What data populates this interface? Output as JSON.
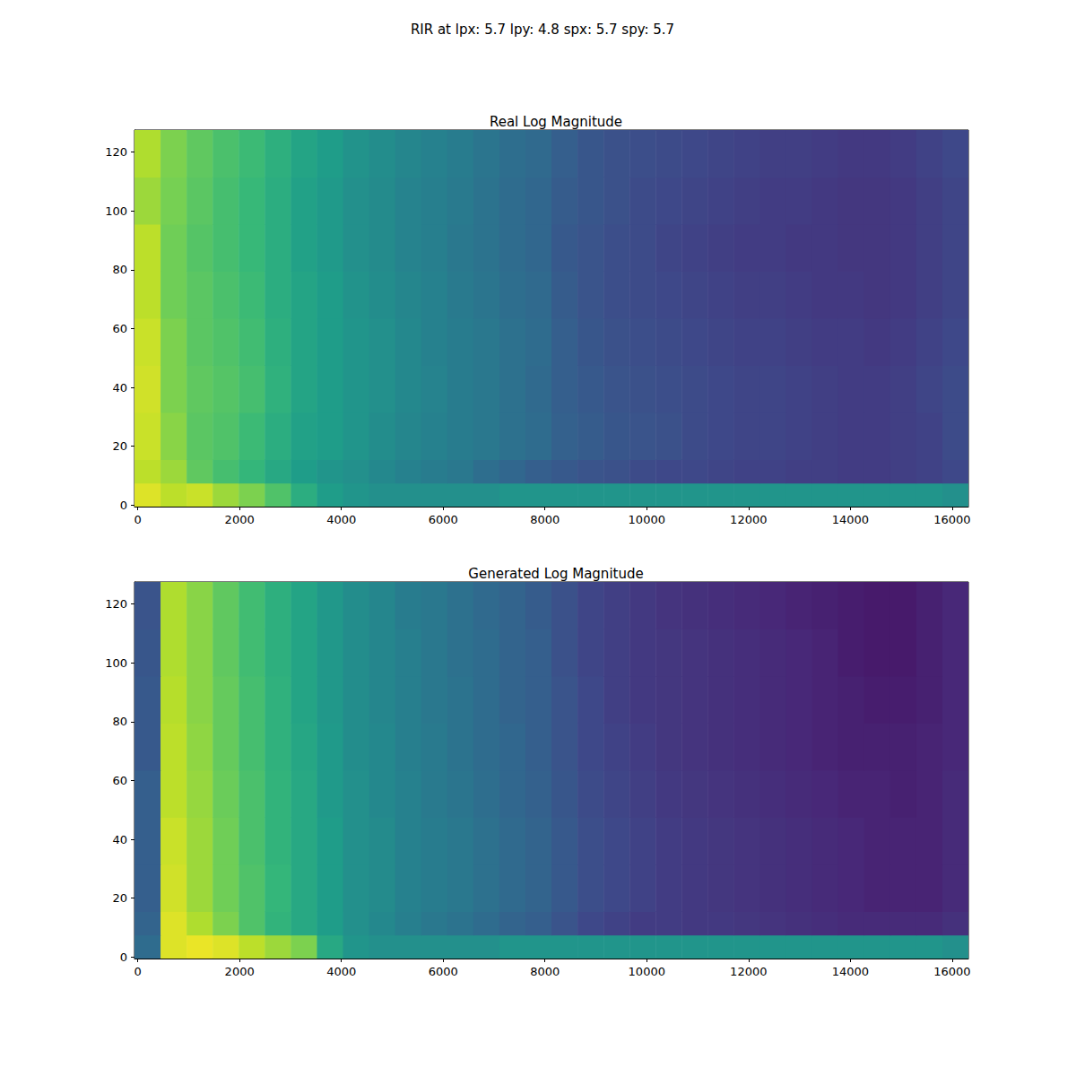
{
  "title": "RIR at lpx: 5.7 lpy: 4.8 spx: 5.7 spy: 5.7",
  "chart_data": [
    {
      "type": "heatmap",
      "title": "Real Log Magnitude",
      "xlim": [
        -64,
        16320
      ],
      "xticks": [
        0,
        2000,
        4000,
        6000,
        8000,
        10000,
        12000,
        14000,
        16000
      ],
      "ylim": [
        -0.5,
        127.5
      ],
      "yticks": [
        0,
        20,
        40,
        60,
        80,
        100,
        120
      ],
      "zlim": [
        0,
        1
      ],
      "x_edges": [
        -64,
        448,
        960,
        1472,
        1984,
        2496,
        3008,
        3520,
        4032,
        4544,
        5056,
        5568,
        6080,
        6592,
        7104,
        7616,
        8128,
        8640,
        9152,
        9664,
        10176,
        10688,
        11200,
        11712,
        12224,
        12736,
        13248,
        13760,
        14272,
        14784,
        15296,
        15808,
        16320
      ],
      "y_edges": [
        -0.5,
        7.5,
        15.5,
        31.5,
        47.5,
        63.5,
        79.5,
        95.5,
        111.5,
        127.5
      ],
      "values": [
        [
          0.95,
          0.9,
          0.92,
          0.85,
          0.8,
          0.72,
          0.62,
          0.55,
          0.52,
          0.5,
          0.5,
          0.5,
          0.5,
          0.5,
          0.52,
          0.52,
          0.52,
          0.52,
          0.52,
          0.52,
          0.52,
          0.52,
          0.52,
          0.52,
          0.52,
          0.52,
          0.52,
          0.52,
          0.52,
          0.52,
          0.52,
          0.5
        ],
        [
          0.9,
          0.85,
          0.75,
          0.7,
          0.66,
          0.6,
          0.55,
          0.52,
          0.5,
          0.47,
          0.44,
          0.42,
          0.4,
          0.36,
          0.33,
          0.3,
          0.28,
          0.26,
          0.25,
          0.23,
          0.22,
          0.22,
          0.21,
          0.2,
          0.2,
          0.19,
          0.19,
          0.18,
          0.18,
          0.19,
          0.2,
          0.22
        ],
        [
          0.92,
          0.82,
          0.74,
          0.72,
          0.68,
          0.62,
          0.57,
          0.55,
          0.52,
          0.49,
          0.46,
          0.44,
          0.42,
          0.4,
          0.37,
          0.35,
          0.31,
          0.29,
          0.27,
          0.26,
          0.25,
          0.23,
          0.22,
          0.21,
          0.21,
          0.2,
          0.19,
          0.18,
          0.18,
          0.19,
          0.2,
          0.23
        ],
        [
          0.93,
          0.8,
          0.75,
          0.73,
          0.7,
          0.64,
          0.58,
          0.55,
          0.52,
          0.5,
          0.47,
          0.45,
          0.42,
          0.4,
          0.37,
          0.34,
          0.3,
          0.28,
          0.26,
          0.25,
          0.24,
          0.23,
          0.22,
          0.21,
          0.21,
          0.2,
          0.19,
          0.18,
          0.18,
          0.19,
          0.21,
          0.23
        ],
        [
          0.92,
          0.8,
          0.74,
          0.72,
          0.69,
          0.63,
          0.58,
          0.55,
          0.52,
          0.5,
          0.47,
          0.44,
          0.42,
          0.4,
          0.37,
          0.35,
          0.3,
          0.27,
          0.25,
          0.24,
          0.23,
          0.22,
          0.21,
          0.2,
          0.2,
          0.19,
          0.18,
          0.18,
          0.17,
          0.18,
          0.2,
          0.22
        ],
        [
          0.9,
          0.78,
          0.74,
          0.71,
          0.68,
          0.62,
          0.58,
          0.55,
          0.51,
          0.49,
          0.46,
          0.44,
          0.41,
          0.39,
          0.36,
          0.34,
          0.29,
          0.26,
          0.24,
          0.23,
          0.22,
          0.21,
          0.2,
          0.19,
          0.19,
          0.18,
          0.17,
          0.17,
          0.16,
          0.17,
          0.19,
          0.21
        ],
        [
          0.9,
          0.78,
          0.73,
          0.7,
          0.67,
          0.62,
          0.57,
          0.54,
          0.5,
          0.48,
          0.45,
          0.43,
          0.4,
          0.38,
          0.35,
          0.33,
          0.28,
          0.26,
          0.24,
          0.23,
          0.21,
          0.2,
          0.19,
          0.18,
          0.18,
          0.17,
          0.17,
          0.16,
          0.16,
          0.17,
          0.19,
          0.21
        ],
        [
          0.85,
          0.79,
          0.74,
          0.7,
          0.67,
          0.62,
          0.57,
          0.54,
          0.5,
          0.48,
          0.45,
          0.43,
          0.41,
          0.38,
          0.35,
          0.33,
          0.29,
          0.27,
          0.25,
          0.23,
          0.22,
          0.21,
          0.2,
          0.19,
          0.18,
          0.18,
          0.17,
          0.16,
          0.16,
          0.17,
          0.19,
          0.21
        ],
        [
          0.88,
          0.8,
          0.75,
          0.71,
          0.68,
          0.63,
          0.58,
          0.55,
          0.51,
          0.49,
          0.46,
          0.44,
          0.42,
          0.39,
          0.36,
          0.34,
          0.3,
          0.27,
          0.25,
          0.24,
          0.23,
          0.22,
          0.21,
          0.2,
          0.19,
          0.19,
          0.18,
          0.17,
          0.17,
          0.18,
          0.2,
          0.22
        ]
      ]
    },
    {
      "type": "heatmap",
      "title": "Generated Log Magnitude",
      "xlim": [
        -64,
        16320
      ],
      "xticks": [
        0,
        2000,
        4000,
        6000,
        8000,
        10000,
        12000,
        14000,
        16000
      ],
      "ylim": [
        -0.5,
        127.5
      ],
      "yticks": [
        0,
        20,
        40,
        60,
        80,
        100,
        120
      ],
      "zlim": [
        0,
        1
      ],
      "x_edges": [
        -64,
        448,
        960,
        1472,
        1984,
        2496,
        3008,
        3520,
        4032,
        4544,
        5056,
        5568,
        6080,
        6592,
        7104,
        7616,
        8128,
        8640,
        9152,
        9664,
        10176,
        10688,
        11200,
        11712,
        12224,
        12736,
        13248,
        13760,
        14272,
        14784,
        15296,
        15808,
        16320
      ],
      "y_edges": [
        -0.5,
        7.5,
        15.5,
        31.5,
        47.5,
        63.5,
        79.5,
        95.5,
        111.5,
        127.5
      ],
      "values": [
        [
          0.35,
          0.95,
          0.97,
          0.95,
          0.9,
          0.85,
          0.8,
          0.6,
          0.52,
          0.5,
          0.5,
          0.5,
          0.5,
          0.5,
          0.52,
          0.52,
          0.52,
          0.52,
          0.52,
          0.52,
          0.52,
          0.52,
          0.52,
          0.52,
          0.52,
          0.52,
          0.52,
          0.52,
          0.52,
          0.52,
          0.52,
          0.5
        ],
        [
          0.32,
          0.95,
          0.88,
          0.8,
          0.72,
          0.65,
          0.6,
          0.55,
          0.5,
          0.47,
          0.43,
          0.4,
          0.38,
          0.35,
          0.32,
          0.3,
          0.26,
          0.22,
          0.2,
          0.18,
          0.18,
          0.17,
          0.17,
          0.16,
          0.15,
          0.14,
          0.13,
          0.12,
          0.12,
          0.12,
          0.12,
          0.14
        ],
        [
          0.3,
          0.93,
          0.85,
          0.78,
          0.72,
          0.66,
          0.6,
          0.55,
          0.5,
          0.48,
          0.44,
          0.42,
          0.4,
          0.37,
          0.34,
          0.32,
          0.28,
          0.24,
          0.22,
          0.2,
          0.18,
          0.17,
          0.16,
          0.15,
          0.14,
          0.13,
          0.12,
          0.11,
          0.1,
          0.1,
          0.1,
          0.12
        ],
        [
          0.3,
          0.92,
          0.85,
          0.78,
          0.71,
          0.65,
          0.6,
          0.55,
          0.5,
          0.48,
          0.44,
          0.42,
          0.4,
          0.37,
          0.34,
          0.32,
          0.28,
          0.24,
          0.22,
          0.2,
          0.18,
          0.17,
          0.16,
          0.15,
          0.14,
          0.13,
          0.12,
          0.11,
          0.1,
          0.1,
          0.1,
          0.12
        ],
        [
          0.3,
          0.9,
          0.84,
          0.77,
          0.71,
          0.65,
          0.6,
          0.54,
          0.5,
          0.47,
          0.44,
          0.41,
          0.39,
          0.36,
          0.33,
          0.31,
          0.27,
          0.23,
          0.21,
          0.19,
          0.17,
          0.16,
          0.15,
          0.14,
          0.13,
          0.12,
          0.11,
          0.1,
          0.1,
          0.09,
          0.1,
          0.12
        ],
        [
          0.28,
          0.9,
          0.83,
          0.76,
          0.7,
          0.64,
          0.59,
          0.54,
          0.49,
          0.47,
          0.43,
          0.41,
          0.38,
          0.35,
          0.33,
          0.3,
          0.26,
          0.22,
          0.2,
          0.18,
          0.16,
          0.15,
          0.14,
          0.13,
          0.12,
          0.11,
          0.1,
          0.09,
          0.09,
          0.09,
          0.1,
          0.11
        ],
        [
          0.28,
          0.89,
          0.82,
          0.76,
          0.7,
          0.64,
          0.58,
          0.53,
          0.49,
          0.46,
          0.43,
          0.4,
          0.38,
          0.35,
          0.32,
          0.3,
          0.26,
          0.22,
          0.19,
          0.17,
          0.16,
          0.15,
          0.14,
          0.13,
          0.12,
          0.11,
          0.1,
          0.09,
          0.08,
          0.08,
          0.09,
          0.11
        ],
        [
          0.27,
          0.88,
          0.82,
          0.75,
          0.69,
          0.63,
          0.58,
          0.53,
          0.49,
          0.46,
          0.43,
          0.4,
          0.37,
          0.35,
          0.32,
          0.3,
          0.25,
          0.21,
          0.19,
          0.17,
          0.16,
          0.15,
          0.14,
          0.13,
          0.12,
          0.11,
          0.1,
          0.08,
          0.07,
          0.07,
          0.09,
          0.11
        ],
        [
          0.26,
          0.88,
          0.82,
          0.75,
          0.69,
          0.63,
          0.58,
          0.53,
          0.49,
          0.46,
          0.42,
          0.4,
          0.37,
          0.34,
          0.32,
          0.29,
          0.25,
          0.21,
          0.19,
          0.17,
          0.15,
          0.14,
          0.13,
          0.12,
          0.11,
          0.1,
          0.09,
          0.08,
          0.07,
          0.07,
          0.09,
          0.11
        ]
      ]
    }
  ]
}
